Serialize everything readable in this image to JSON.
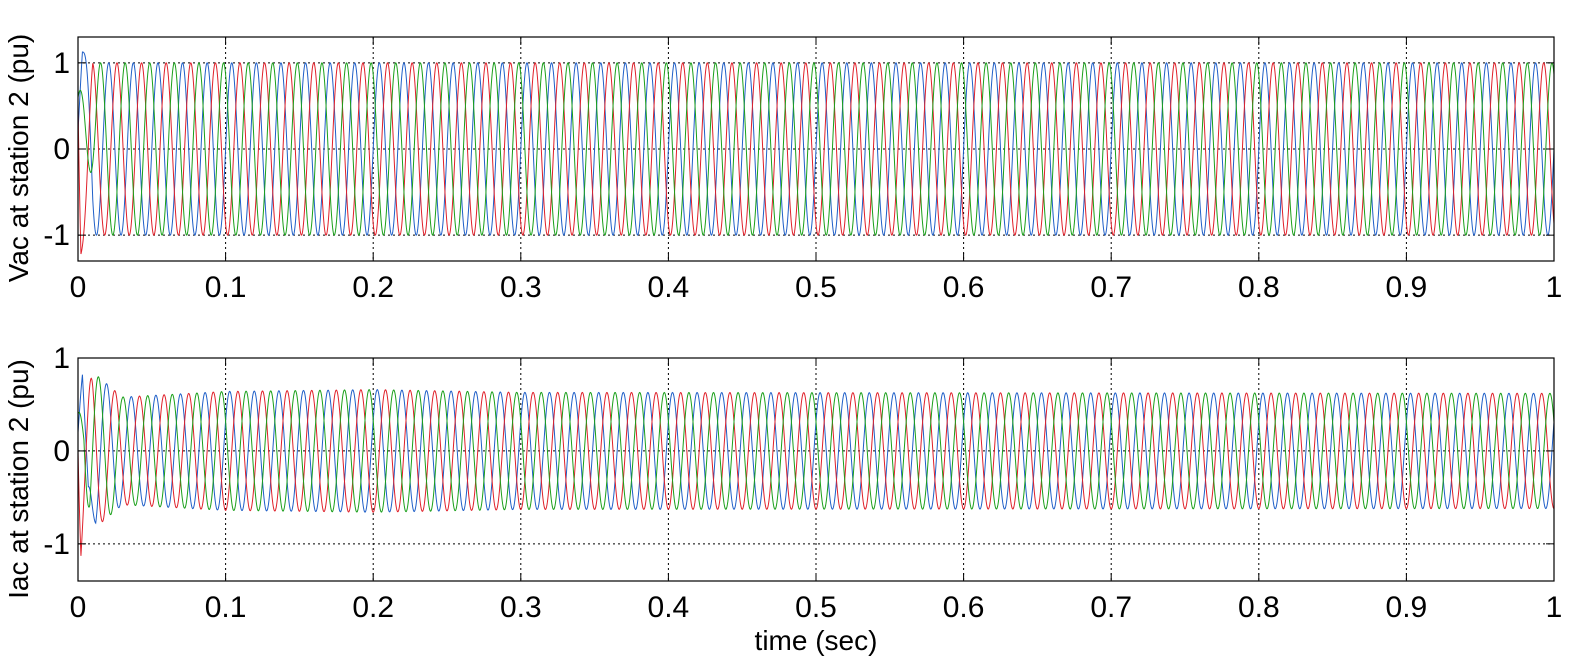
{
  "chart_data": [
    {
      "type": "line",
      "ylabel": "Vac at station 2 (pu)",
      "xlabel": "",
      "xlim": [
        0,
        1
      ],
      "ylim": [
        -1.3,
        1.3
      ],
      "xticks": [
        "0",
        "0.1",
        "0.2",
        "0.3",
        "0.4",
        "0.5",
        "0.6",
        "0.7",
        "0.8",
        "0.9",
        "1"
      ],
      "yticks": [
        "-1",
        "0",
        "1"
      ],
      "ytick_values": [
        -1,
        0,
        1
      ],
      "grid": true,
      "frequency_hz": 60,
      "series": [
        {
          "color": "#1f5fc8",
          "amplitude": 1.0,
          "phase_deg": 0,
          "transient": [
            [
              0,
              0.2
            ],
            [
              0.003,
              1.22
            ],
            [
              0.006,
              1.15
            ],
            [
              0.01,
              1.05
            ]
          ]
        },
        {
          "color": "#e0202a",
          "amplitude": 1.0,
          "phase_deg": -120,
          "transient": [
            [
              0,
              0.5
            ],
            [
              0.002,
              -1.28
            ],
            [
              0.005,
              -1.2
            ],
            [
              0.01,
              -1.05
            ]
          ]
        },
        {
          "color": "#1aa01a",
          "amplitude": 1.0,
          "phase_deg": 120,
          "transient": [
            [
              0,
              0.6
            ],
            [
              0.004,
              0.9
            ],
            [
              0.008,
              1.1
            ],
            [
              0.012,
              1.05
            ]
          ]
        }
      ]
    },
    {
      "type": "line",
      "ylabel": "Iac at station 2 (pu)",
      "xlabel": "time (sec)",
      "xlim": [
        0,
        1
      ],
      "ylim": [
        -1.4,
        1.0
      ],
      "xticks": [
        "0",
        "0.1",
        "0.2",
        "0.3",
        "0.4",
        "0.5",
        "0.6",
        "0.7",
        "0.8",
        "0.9",
        "1"
      ],
      "yticks": [
        "-1",
        "0",
        "1"
      ],
      "ytick_values": [
        -1,
        0,
        1
      ],
      "grid": true,
      "frequency_hz": 60,
      "series": [
        {
          "color": "#1f5fc8",
          "amplitude": 0.62,
          "phase_deg": 30,
          "envelope": [
            [
              0,
              0.9
            ],
            [
              0.01,
              0.85
            ],
            [
              0.03,
              0.58
            ],
            [
              0.1,
              0.64
            ],
            [
              0.2,
              0.66
            ],
            [
              0.3,
              0.63
            ],
            [
              1.0,
              0.62
            ]
          ],
          "transient": [
            [
              0,
              0.2
            ],
            [
              0.003,
              0.8
            ],
            [
              0.007,
              -0.9
            ],
            [
              0.012,
              0.75
            ]
          ]
        },
        {
          "color": "#e0202a",
          "amplitude": 0.62,
          "phase_deg": -90,
          "envelope": [
            [
              0,
              0.9
            ],
            [
              0.01,
              0.85
            ],
            [
              0.03,
              0.58
            ],
            [
              0.1,
              0.64
            ],
            [
              0.2,
              0.66
            ],
            [
              0.3,
              0.63
            ],
            [
              1.0,
              0.62
            ]
          ],
          "transient": [
            [
              0,
              0.0
            ],
            [
              0.002,
              -1.25
            ],
            [
              0.005,
              -0.6
            ],
            [
              0.01,
              0.6
            ]
          ]
        },
        {
          "color": "#1aa01a",
          "amplitude": 0.62,
          "phase_deg": 150,
          "envelope": [
            [
              0,
              0.9
            ],
            [
              0.01,
              0.85
            ],
            [
              0.03,
              0.58
            ],
            [
              0.1,
              0.64
            ],
            [
              0.2,
              0.66
            ],
            [
              0.3,
              0.63
            ],
            [
              1.0,
              0.62
            ]
          ],
          "transient": [
            [
              0,
              0.4
            ],
            [
              0.004,
              0.55
            ],
            [
              0.008,
              -0.7
            ],
            [
              0.012,
              0.5
            ]
          ]
        }
      ]
    }
  ]
}
